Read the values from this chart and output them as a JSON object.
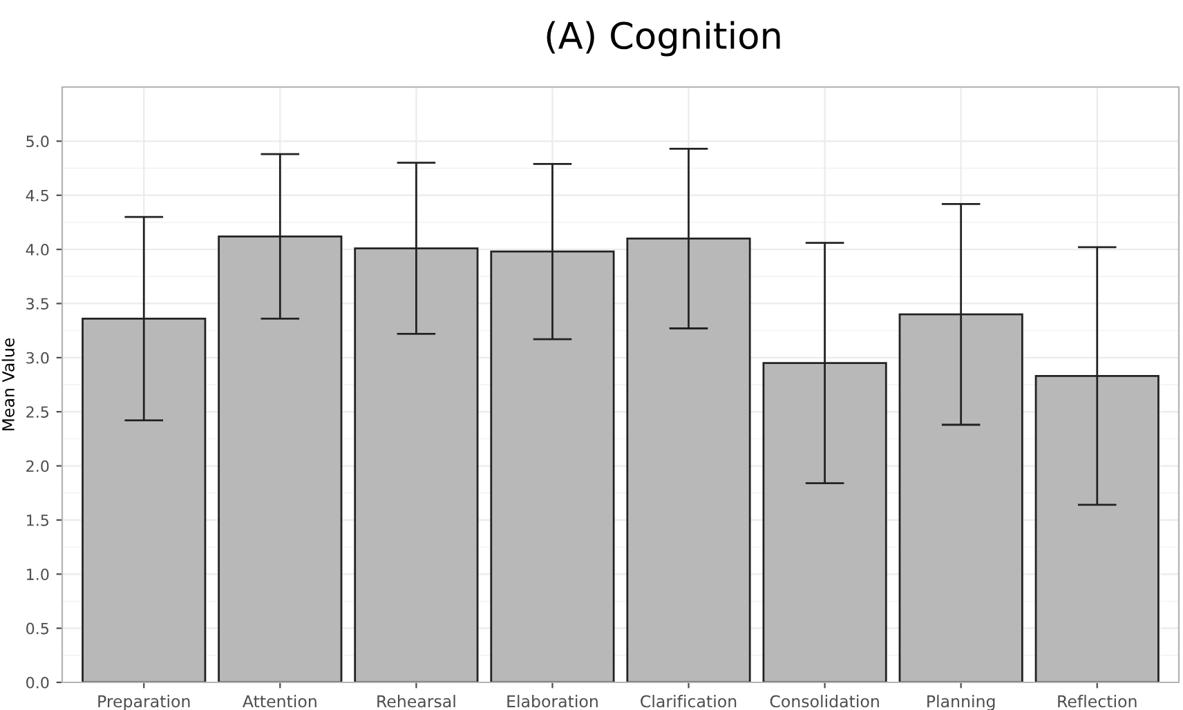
{
  "chart_data": {
    "type": "bar",
    "title": "(A) Cognition",
    "ylabel": "Mean Value",
    "categories": [
      "Preparation",
      "Attention",
      "Rehearsal",
      "Elaboration",
      "Clarification",
      "Consolidation",
      "Planning",
      "Reflection"
    ],
    "values": [
      3.36,
      4.12,
      4.01,
      3.98,
      4.1,
      2.95,
      3.4,
      2.83
    ],
    "errors": [
      0.94,
      0.76,
      0.79,
      0.81,
      0.83,
      1.11,
      1.02,
      1.19
    ],
    "color": "#b8b8b8",
    "ylim": [
      0,
      5.5
    ],
    "yticks": [
      {
        "value": 0,
        "label": "0.0"
      },
      0.5,
      {
        "value": 1,
        "label": "1.0"
      },
      1.5,
      {
        "value": 2,
        "label": "2.0"
      },
      2.5,
      {
        "value": 3,
        "label": "3.0"
      },
      3.5,
      {
        "value": 4,
        "label": "4.0"
      },
      4.5,
      {
        "value": 5,
        "label": "5.0"
      }
    ],
    "grid": true
  }
}
